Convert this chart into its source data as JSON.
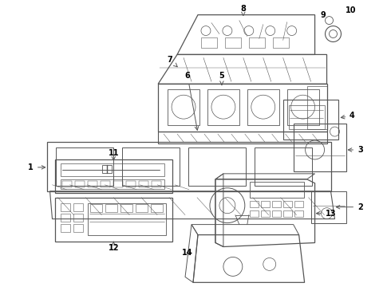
{
  "bg_color": "#ffffff",
  "line_color": "#555555",
  "label_color": "#000000",
  "figsize": [
    4.9,
    3.6
  ],
  "dpi": 100
}
